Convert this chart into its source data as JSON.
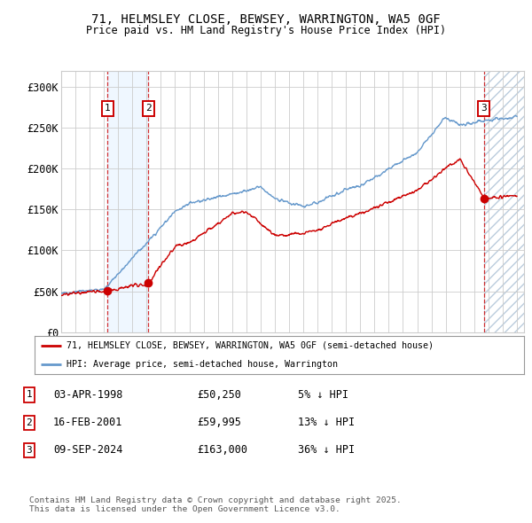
{
  "title_line1": "71, HELMSLEY CLOSE, BEWSEY, WARRINGTON, WA5 0GF",
  "title_line2": "Price paid vs. HM Land Registry's House Price Index (HPI)",
  "ylim": [
    0,
    320000
  ],
  "xlim_start": 1995.0,
  "xlim_end": 2027.5,
  "yticks": [
    0,
    50000,
    100000,
    150000,
    200000,
    250000,
    300000
  ],
  "ytick_labels": [
    "£0",
    "£50K",
    "£100K",
    "£150K",
    "£200K",
    "£250K",
    "£300K"
  ],
  "red_line_color": "#cc0000",
  "blue_line_color": "#6699cc",
  "sale_marker_color": "#cc0000",
  "sale_marker_size": 6,
  "sales": [
    {
      "num": 1,
      "x": 1998.25,
      "price": 50250
    },
    {
      "num": 2,
      "x": 2001.12,
      "price": 59995
    },
    {
      "num": 3,
      "x": 2024.68,
      "price": 163000
    }
  ],
  "legend_line1": "71, HELMSLEY CLOSE, BEWSEY, WARRINGTON, WA5 0GF (semi-detached house)",
  "legend_line2": "HPI: Average price, semi-detached house, Warrington",
  "footnote": "Contains HM Land Registry data © Crown copyright and database right 2025.\nThis data is licensed under the Open Government Licence v3.0.",
  "table_rows": [
    {
      "num": 1,
      "date": "03-APR-1998",
      "price": "£50,250",
      "pct": "5% ↓ HPI"
    },
    {
      "num": 2,
      "date": "16-FEB-2001",
      "price": "£59,995",
      "pct": "13% ↓ HPI"
    },
    {
      "num": 3,
      "date": "09-SEP-2024",
      "price": "£163,000",
      "pct": "36% ↓ HPI"
    }
  ],
  "background_color": "#ffffff",
  "grid_color": "#cccccc",
  "sale_box_color": "#cc0000",
  "highlight_color": "#ddeeff",
  "hatch_color": "#aabbcc",
  "span1_x0": 1998.25,
  "span1_x1": 2001.12,
  "future_x": 2024.68
}
